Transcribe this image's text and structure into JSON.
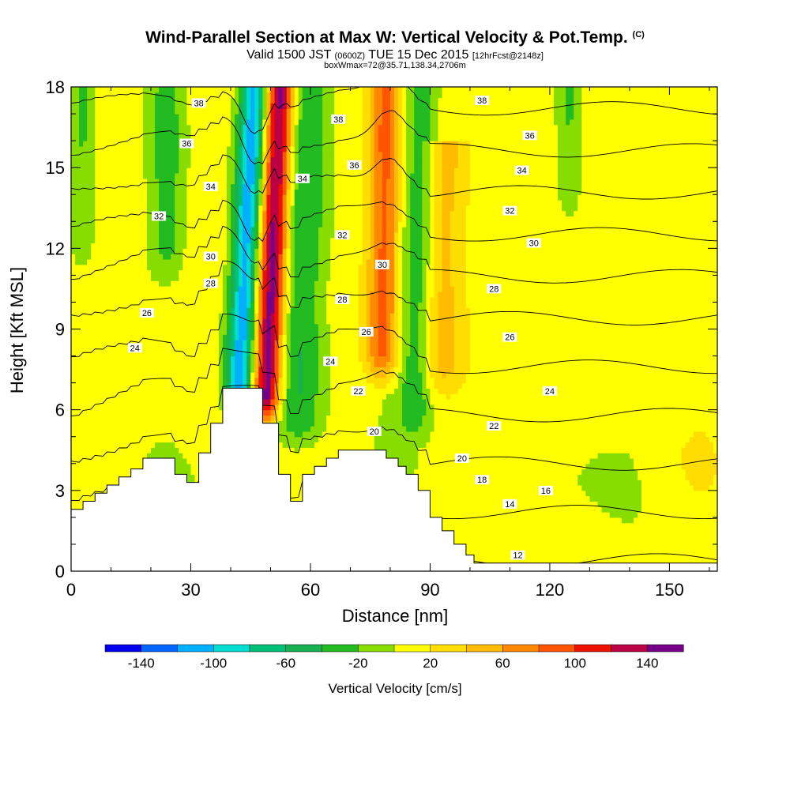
{
  "title_main": "Wind-Parallel Section at Max W: Vertical Velocity & Pot.Temp.",
  "title_mark": "(C)",
  "subtitle_a": "Valid 1500 JST",
  "subtitle_b": "(0600Z)",
  "subtitle_c": "TUE 15 Dec 2015",
  "subtitle_d": "[12hrFcst@2148z]",
  "subtitle2": "boxWmax=72@35.71,138.34,2706m",
  "chart_data": {
    "type": "contour",
    "xlabel": "Distance [nm]",
    "ylabel": "Height [Kft MSL]",
    "xlim": [
      0,
      162
    ],
    "ylim": [
      0,
      18
    ],
    "xticks": [
      0,
      30,
      60,
      90,
      120,
      150
    ],
    "yticks": [
      0,
      3,
      6,
      9,
      12,
      15,
      18
    ],
    "colorbar": {
      "label": "Vertical Velocity [cm/s]",
      "tick_labels": [
        "-140",
        "-100",
        "-60",
        "-20",
        "20",
        "60",
        "100",
        "140"
      ],
      "bins": [
        -160,
        -140,
        -120,
        -100,
        -80,
        -60,
        -40,
        -20,
        0,
        20,
        40,
        60,
        80,
        100,
        120,
        140,
        160
      ],
      "colors": [
        "#0000ee",
        "#0066ff",
        "#00b0ff",
        "#00dcd0",
        "#00c078",
        "#18b050",
        "#22bb22",
        "#88dd00",
        "#ffff00",
        "#ffdd00",
        "#ffbb00",
        "#ff8800",
        "#ff5500",
        "#ee1100",
        "#bb0044",
        "#770088"
      ]
    },
    "velocity_features": [
      {
        "x": 42,
        "base": 6.8,
        "top": 18,
        "peak": -120,
        "width": 3.5,
        "tilt": 0.35
      },
      {
        "x": 49,
        "base": 6.5,
        "top": 18,
        "peak": 150,
        "width": 3.5,
        "tilt": 0.3
      },
      {
        "x": 57,
        "base": 5.5,
        "top": 18,
        "peak": -45,
        "width": 6,
        "tilt": 0.2
      },
      {
        "x": 78,
        "base": 8,
        "top": 18,
        "peak": 80,
        "width": 4,
        "tilt": 0.1
      },
      {
        "x": 86,
        "base": 6,
        "top": 18,
        "peak": -40,
        "width": 4,
        "tilt": 0.15
      },
      {
        "x": 93,
        "base": 7.5,
        "top": 16,
        "peak": 35,
        "width": 5,
        "tilt": 0.1
      },
      {
        "x": 24,
        "base": 12,
        "top": 18,
        "peak": -35,
        "width": 4,
        "tilt": 0
      },
      {
        "x": 3,
        "base": 12.5,
        "top": 18,
        "peak": -30,
        "width": 3,
        "tilt": 0
      },
      {
        "x": 125,
        "base": 14,
        "top": 18,
        "peak": -30,
        "width": 3,
        "tilt": 0
      }
    ],
    "isentropes": [
      12,
      14,
      16,
      18,
      20,
      22,
      24,
      26,
      28,
      30,
      32,
      34,
      36,
      38
    ],
    "isentrope_labels": [
      {
        "x": 32,
        "y": 17.4,
        "v": "38"
      },
      {
        "x": 29,
        "y": 15.9,
        "v": "36"
      },
      {
        "x": 35,
        "y": 14.3,
        "v": "34"
      },
      {
        "x": 22,
        "y": 13.2,
        "v": "32"
      },
      {
        "x": 35,
        "y": 11.7,
        "v": "30"
      },
      {
        "x": 35,
        "y": 10.7,
        "v": "28"
      },
      {
        "x": 19,
        "y": 9.6,
        "v": "26"
      },
      {
        "x": 16,
        "y": 8.3,
        "v": "24"
      },
      {
        "x": 67,
        "y": 16.8,
        "v": "38"
      },
      {
        "x": 71,
        "y": 15.1,
        "v": "36"
      },
      {
        "x": 58,
        "y": 14.6,
        "v": "34"
      },
      {
        "x": 68,
        "y": 12.5,
        "v": "32"
      },
      {
        "x": 78,
        "y": 11.4,
        "v": "30"
      },
      {
        "x": 68,
        "y": 10.1,
        "v": "28"
      },
      {
        "x": 74,
        "y": 8.9,
        "v": "26"
      },
      {
        "x": 65,
        "y": 7.8,
        "v": "24"
      },
      {
        "x": 72,
        "y": 6.7,
        "v": "22"
      },
      {
        "x": 76,
        "y": 5.2,
        "v": "20"
      },
      {
        "x": 103,
        "y": 17.5,
        "v": "38"
      },
      {
        "x": 115,
        "y": 16.2,
        "v": "36"
      },
      {
        "x": 113,
        "y": 14.9,
        "v": "34"
      },
      {
        "x": 110,
        "y": 13.4,
        "v": "32"
      },
      {
        "x": 116,
        "y": 12.2,
        "v": "30"
      },
      {
        "x": 106,
        "y": 10.5,
        "v": "28"
      },
      {
        "x": 110,
        "y": 8.7,
        "v": "26"
      },
      {
        "x": 120,
        "y": 6.7,
        "v": "24"
      },
      {
        "x": 106,
        "y": 5.4,
        "v": "22"
      },
      {
        "x": 98,
        "y": 4.2,
        "v": "20"
      },
      {
        "x": 103,
        "y": 3.4,
        "v": "18"
      },
      {
        "x": 119,
        "y": 3.0,
        "v": "16"
      },
      {
        "x": 110,
        "y": 2.5,
        "v": "14"
      },
      {
        "x": 112,
        "y": 0.6,
        "v": "12"
      }
    ],
    "terrain": [
      [
        0,
        2.3
      ],
      [
        3,
        2.3
      ],
      [
        3,
        2.6
      ],
      [
        6,
        2.6
      ],
      [
        6,
        2.9
      ],
      [
        9,
        2.9
      ],
      [
        9,
        3.2
      ],
      [
        12,
        3.2
      ],
      [
        12,
        3.5
      ],
      [
        15,
        3.5
      ],
      [
        15,
        3.8
      ],
      [
        18,
        3.8
      ],
      [
        18,
        4.2
      ],
      [
        26,
        4.2
      ],
      [
        26,
        3.6
      ],
      [
        29,
        3.6
      ],
      [
        29,
        3.3
      ],
      [
        32,
        3.3
      ],
      [
        32,
        4.4
      ],
      [
        35,
        4.4
      ],
      [
        35,
        5.5
      ],
      [
        38,
        5.5
      ],
      [
        38,
        6.8
      ],
      [
        48,
        6.8
      ],
      [
        48,
        5.5
      ],
      [
        52,
        5.5
      ],
      [
        52,
        3.6
      ],
      [
        55,
        3.6
      ],
      [
        55,
        2.6
      ],
      [
        58,
        2.6
      ],
      [
        58,
        3.6
      ],
      [
        61,
        3.6
      ],
      [
        61,
        3.9
      ],
      [
        64,
        3.9
      ],
      [
        64,
        4.2
      ],
      [
        67,
        4.2
      ],
      [
        67,
        4.5
      ],
      [
        79,
        4.5
      ],
      [
        79,
        4.2
      ],
      [
        82,
        4.2
      ],
      [
        82,
        3.9
      ],
      [
        84,
        3.9
      ],
      [
        84,
        3.6
      ],
      [
        87,
        3.6
      ],
      [
        87,
        3.0
      ],
      [
        90,
        3.0
      ],
      [
        90,
        2.0
      ],
      [
        93,
        2.0
      ],
      [
        93,
        1.5
      ],
      [
        96,
        1.5
      ],
      [
        96,
        1.0
      ],
      [
        99,
        1.0
      ],
      [
        99,
        0.6
      ],
      [
        101,
        0.6
      ],
      [
        101,
        0.3
      ],
      [
        162,
        0.3
      ]
    ]
  }
}
